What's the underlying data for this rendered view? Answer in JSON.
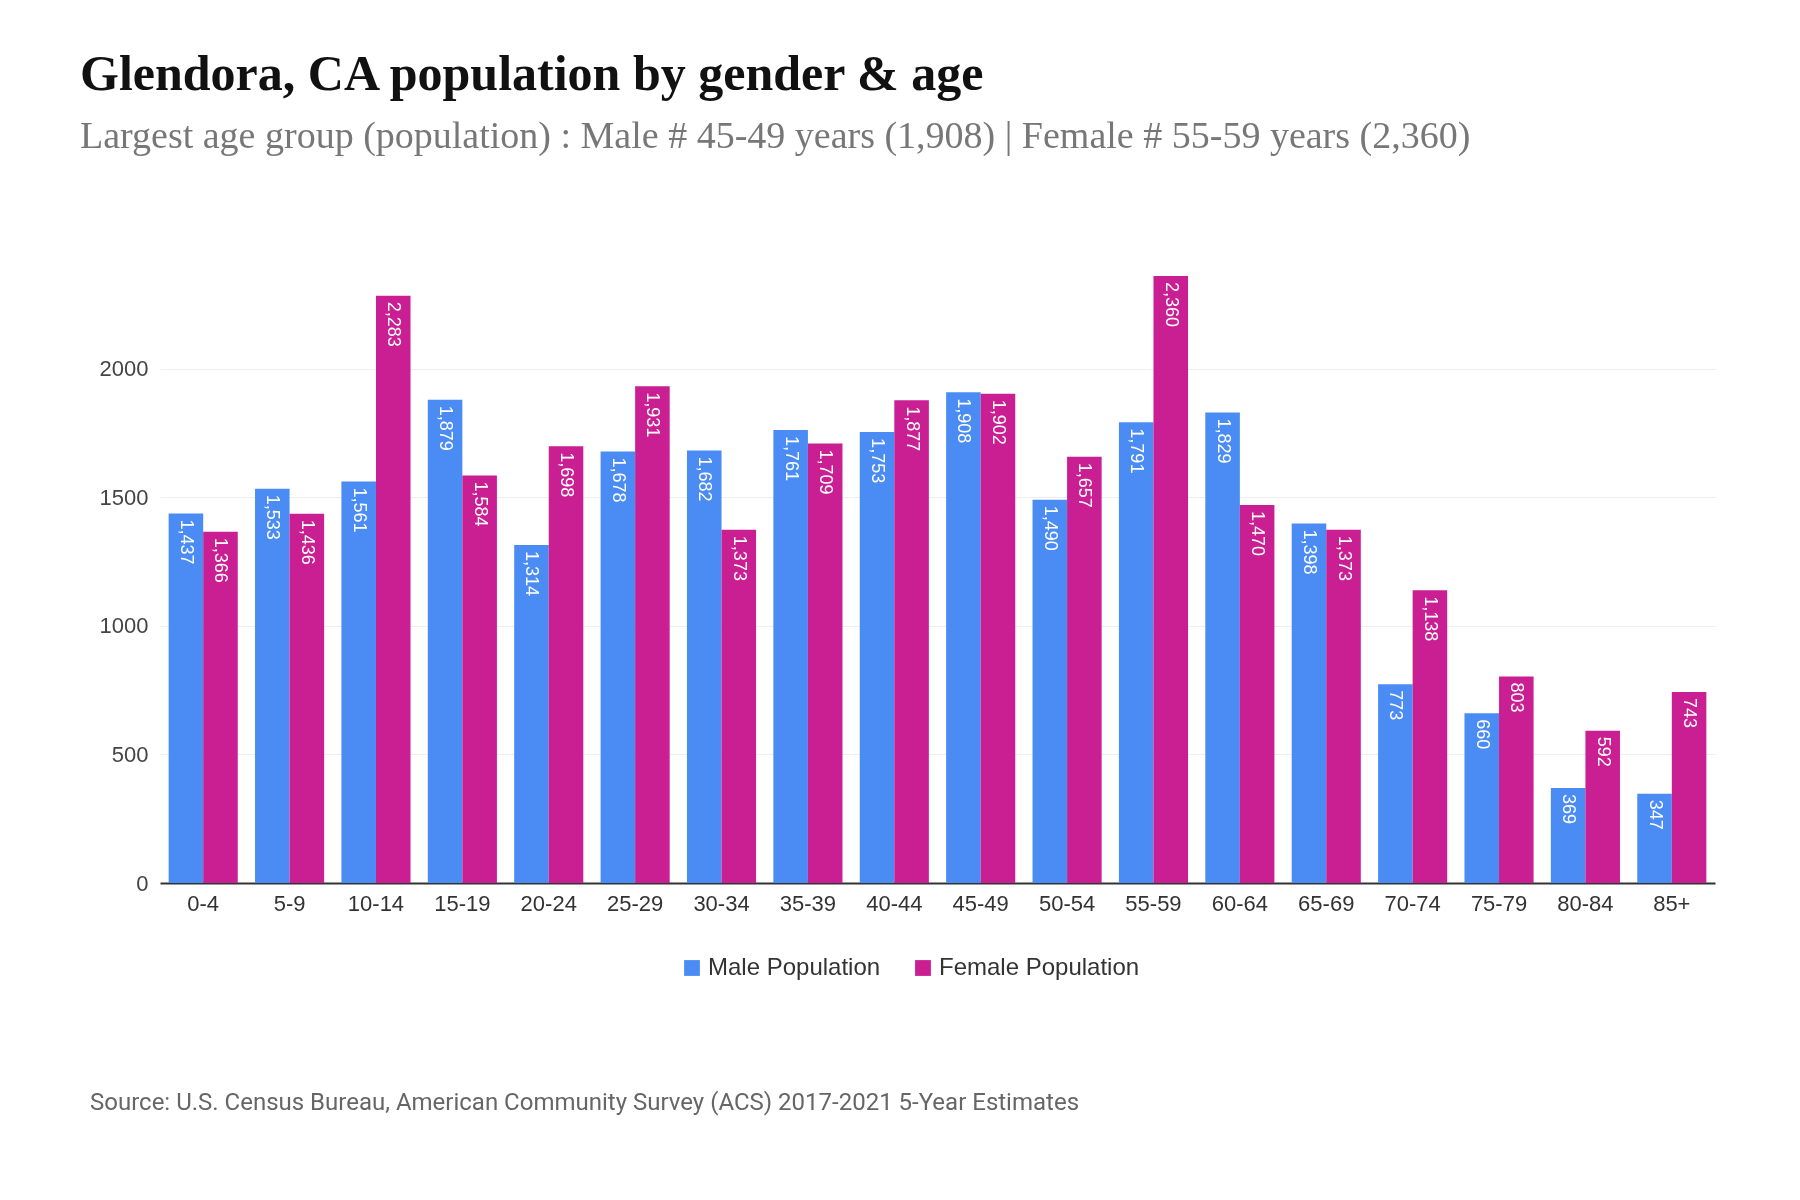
{
  "chart_data": {
    "type": "bar",
    "title": "Glendora, CA population by gender & age",
    "subtitle": "Largest age group (population) : Male # 45-49 years (1,908) | Female # 55-59 years (2,360)",
    "categories": [
      "0-4",
      "5-9",
      "10-14",
      "15-19",
      "20-24",
      "25-29",
      "30-34",
      "35-39",
      "40-44",
      "45-49",
      "50-54",
      "55-59",
      "60-64",
      "65-69",
      "70-74",
      "75-79",
      "80-84",
      "85+"
    ],
    "series": [
      {
        "name": "Male Population",
        "color": "#4a8cf4",
        "values": [
          1437,
          1533,
          1561,
          1879,
          1314,
          1678,
          1682,
          1761,
          1753,
          1908,
          1490,
          1791,
          1829,
          1398,
          773,
          660,
          369,
          347
        ],
        "value_labels": [
          "1,437",
          "1,533",
          "1,561",
          "1,879",
          "1,314",
          "1,678",
          "1,682",
          "1,761",
          "1,753",
          "1,908",
          "1,490",
          "1,791",
          "1,829",
          "1,398",
          "773",
          "660",
          "369",
          "347"
        ]
      },
      {
        "name": "Female Population",
        "color": "#c91f93",
        "values": [
          1366,
          1436,
          2283,
          1584,
          1698,
          1931,
          1373,
          1709,
          1877,
          1902,
          1657,
          2360,
          1470,
          1373,
          1138,
          803,
          592,
          743
        ],
        "value_labels": [
          "1,366",
          "1,436",
          "2,283",
          "1,584",
          "1,698",
          "1,931",
          "1,373",
          "1,709",
          "1,877",
          "1,902",
          "1,657",
          "2,360",
          "1,470",
          "1,373",
          "1,138",
          "803",
          "592",
          "743"
        ]
      }
    ],
    "ylim": [
      0,
      2360
    ],
    "yticks": [
      0,
      500,
      1000,
      1500,
      2000
    ],
    "grid": "y",
    "legend": "bottom",
    "annotations": [
      "Source: U.S. Census Bureau, American Community Survey (ACS) 2017-2021 5-Year Estimates"
    ]
  }
}
